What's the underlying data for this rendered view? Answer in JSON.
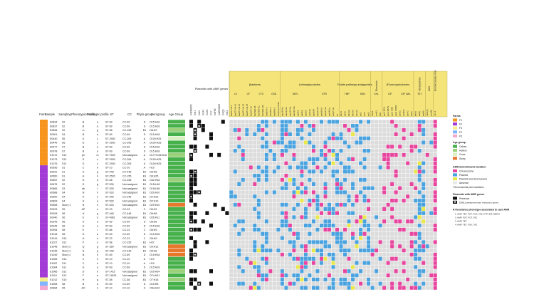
{
  "figure": {
    "column_headers": {
      "farm": "Farm",
      "sample": "Sample",
      "sampling": "Sampling",
      "phenotypic_profile": "Phenotypic Profile",
      "genotypic_profile": "Genotypic profile",
      "st": "ST",
      "cc": "CC",
      "phylogroup": "Phylo-group",
      "serogroup": "Serogroup",
      "age_group": "Age Group"
    },
    "plasmid_title": "Plasmids with AMR genes",
    "plasmid_columns": [
      "IncFIB/FIC",
      "IncI1",
      "IncN",
      "IncX1",
      "IncX4",
      "IncY",
      "IncHI2",
      "IncB/O/K/Z",
      "IncQ1",
      "IncI2"
    ],
    "gene_groups": [
      {
        "name": "βlactams",
        "subs": [
          "LX",
          "CF",
          "CTX",
          "OXA"
        ]
      },
      {
        "name": "Aminoglycosides",
        "subs": [
          "GEN",
          "STR"
        ]
      },
      {
        "name": "Folate pathway antagonists",
        "subs": [
          "TMP",
          "SMX"
        ]
      },
      {
        "name": "Phenicols",
        "subs": [
          "CHL"
        ]
      },
      {
        "name": "(F)uoroquinolones",
        "subs": [
          "CIP",
          "CIP, NAL"
        ]
      },
      {
        "name": "Tetracyclines",
        "subs": [
          "TET"
        ]
      },
      {
        "name": "MLS",
        "subs": []
      },
      {
        "name": "Antimicrobials other",
        "subs": []
      }
    ],
    "gene_columns": [
      "blaCTX-M-1",
      "blaCTX-M-14",
      "blaCTX-M-15",
      "blaCTX-M-32",
      "blaCTX-M-55",
      "blaSHV-12",
      "blaTEM-1B",
      "blaTEM-1C",
      "blaTEM-135",
      "blaOXA-1",
      "blaCMY-2",
      "blaDHA-1",
      "ampC-promoter",
      "aac(3)-IIa",
      "aac(3)-IId",
      "aac(3)-IVa",
      "aac(3)-VIa",
      "aadA1",
      "aadA2",
      "aadA5",
      "aadA12",
      "aadA24",
      "aph(3'')-Ib",
      "aph(6)-Id",
      "aph(3')-Ia",
      "aph(4)-Ia",
      "ant(2'')-Ia",
      "str",
      "dfrA1",
      "dfrA5",
      "dfrA12",
      "dfrA14",
      "dfrA17",
      "sul1",
      "sul2",
      "sul3",
      "catA1",
      "cmlA1",
      "floR",
      "gyrA S83L",
      "gyrA D87N",
      "parC S80I",
      "parE S458A",
      "qnrS1",
      "qnrB19",
      "qnrA1",
      "qepA",
      "tet(A)",
      "tet(B)",
      "tet(M)",
      "mph(A)",
      "erm(B)",
      "mcr-1"
    ],
    "rows": [
      {
        "sample": "E0834",
        "sampling": "S2",
        "phen": "B",
        "gen": "a",
        "st": "ST-69",
        "cc": "CC-69",
        "phylo": "D",
        "sero": "O15:H18",
        "farm": "F1",
        "age": "Calves"
      },
      {
        "sample": "E0837",
        "sampling": "S2",
        "phen": "B",
        "gen": "a",
        "st": "ST-69",
        "cc": "CC-69",
        "phylo": "D",
        "sero": "O15:H18",
        "farm": "F1",
        "age": "Calves"
      },
      {
        "sample": "E0838",
        "sampling": "S2",
        "phen": "m",
        "gen": "g",
        "st": "ST-58",
        "cc": "CC-155",
        "phylo": "B1",
        "sero": "O8:H9",
        "farm": "F1",
        "age": "Heifers"
      },
      {
        "sample": "E0901",
        "sampling": "S4",
        "phen": "B",
        "gen": "a",
        "st": "ST-69",
        "cc": "CC-69",
        "phylo": "D",
        "sero": "O15:H18",
        "farm": "F1",
        "age": "Calves"
      },
      {
        "sample": "E0440",
        "sampling": "S6",
        "phen": "G",
        "gen": "c",
        "st": "ST-2930",
        "cc": "CC-206",
        "phylo": "A",
        "sero": "O100:H25",
        "farm": "F1",
        "age": "Cows"
      },
      {
        "sample": "E0449",
        "sampling": "S6",
        "phen": "G",
        "gen": "c",
        "st": "ST-2930",
        "cc": "CC-206",
        "phylo": "A",
        "sero": "O100:H25",
        "farm": "F1",
        "age": "Calves"
      },
      {
        "sample": "E0977",
        "sampling": "S7",
        "phen": "B",
        "gen": "a",
        "st": "ST-69",
        "cc": "CC-69",
        "phylo": "D",
        "sero": "O15:H18",
        "farm": "F1",
        "age": "Calves"
      },
      {
        "sample": "E0978",
        "sampling": "S7",
        "phen": "B",
        "gen": "a",
        "st": "ST-69",
        "cc": "CC-69",
        "phylo": "D",
        "sero": "O15:H18",
        "farm": "F1",
        "age": "Calves"
      },
      {
        "sample": "E1072",
        "sampling": "S12",
        "phen": "pC",
        "gen": "m",
        "st": "ST-7539",
        "cc": "Not assigned",
        "phylo": "A",
        "sero": "O177/O46:H18",
        "farm": "F1",
        "age": "Heifers"
      },
      {
        "sample": "E1073",
        "sampling": "S12",
        "phen": "G",
        "gen": "c",
        "st": "ST-2930",
        "cc": "CC-206",
        "phylo": "A",
        "sero": "O100:H25",
        "farm": "F1",
        "age": "Calves"
      },
      {
        "sample": "E1075",
        "sampling": "S12",
        "phen": "G",
        "gen": "c",
        "st": "ST-2930",
        "cc": "CC-206",
        "phylo": "A",
        "sero": "O100:H25",
        "farm": "F1",
        "age": "Calves"
      },
      {
        "sample": "E0636",
        "sampling": "S1",
        "phen": "C",
        "gen": "b",
        "st": "ST-10",
        "cc": "CC-10",
        "phylo": "A",
        "sero": "H19",
        "farm": "F2",
        "age": "Calves"
      },
      {
        "sample": "E0642",
        "sampling": "S1",
        "phen": "H",
        "gen": "g",
        "st": "ST-448",
        "cc": "CC-448",
        "phylo": "B1",
        "sero": "O8:H8",
        "farm": "F2",
        "age": "Calves"
      },
      {
        "sample": "E0650",
        "sampling": "S1",
        "phen": "H",
        "gen": "h",
        "st": "ST-2520",
        "cc": "CC-155",
        "phylo": "B1",
        "sero": "O8:H25",
        "farm": "F2",
        "age": "Calves"
      },
      {
        "sample": "E0657",
        "sampling": "S2",
        "phen": "G",
        "gen": "d",
        "st": "ST-58",
        "cc": "CC-155",
        "phylo": "B1",
        "sero": "O32:H18",
        "farm": "F2",
        "age": "Heifers"
      },
      {
        "sample": "E0675",
        "sampling": "S2",
        "phen": "G",
        "gen": "g",
        "st": "ST-539",
        "cc": "Not assigned",
        "phylo": "B1",
        "sero": "O154:H8",
        "farm": "F2",
        "age": "Calves"
      },
      {
        "sample": "E0665",
        "sampling": "S3",
        "phen": "ab",
        "gen": "f",
        "st": "ST-539",
        "cc": "Not assigned",
        "phylo": "B1",
        "sero": "O154:H8",
        "farm": "F2",
        "age": "Calves"
      },
      {
        "sample": "E0688",
        "sampling": "S4",
        "phen": "N",
        "gen": "h",
        "st": "ST-533",
        "cc": "Not assigned",
        "phylo": "B1",
        "sero": "O29:H10",
        "farm": "F2",
        "age": "Calves"
      },
      {
        "sample": "E0690",
        "sampling": "S4",
        "phen": "H",
        "gen": "h",
        "st": "ST-345",
        "cc": "CC-345",
        "phylo": "B1",
        "sero": "O2:H29",
        "farm": "F2",
        "age": "Calves"
      },
      {
        "sample": "E0893",
        "sampling": "S4",
        "phen": "H",
        "gen": "a",
        "st": "ST-533",
        "cc": "Not assigned",
        "phylo": "B1",
        "sero": "O2:H10",
        "farm": "F2",
        "age": "Calves"
      },
      {
        "sample": "E0898",
        "sampling": "Slurry 1",
        "phen": "N",
        "gen": "h",
        "st": "ST-533",
        "cc": "Not assigned",
        "phylo": "B1",
        "sero": "O29:H10",
        "farm": "F2",
        "age": "Slurry"
      },
      {
        "sample": "E0923",
        "sampling": "S5",
        "phen": "AP",
        "gen": "e",
        "st": "ST-23",
        "cc": "CC-23",
        "phylo": "C",
        "sero": "O8:H9",
        "farm": "F2",
        "age": "Calves"
      },
      {
        "sample": "E0928",
        "sampling": "S6",
        "phen": "H",
        "gen": "g",
        "st": "ST-448",
        "cc": "CC-448",
        "phylo": "B1",
        "sero": "O8:H8",
        "farm": "F2",
        "age": "Calves"
      },
      {
        "sample": "E0940",
        "sampling": "S6",
        "phen": "E",
        "gen": "e",
        "st": "ST-4981",
        "cc": "Not assigned",
        "phylo": "B1",
        "sero": "O26:H11",
        "farm": "F2",
        "age": "Calves"
      },
      {
        "sample": "E0943",
        "sampling": "S6",
        "phen": "H",
        "gen": "a",
        "st": "ST-69",
        "cc": "CC-69",
        "phylo": "D",
        "sero": "O8:H8",
        "farm": "F2",
        "age": "Calves"
      },
      {
        "sample": "E0945",
        "sampling": "S6",
        "phen": "G",
        "gen": "a",
        "st": "ST-69",
        "cc": "CC-69",
        "phylo": "D",
        "sero": "O15:H18",
        "farm": "F2",
        "age": "Calves"
      },
      {
        "sample": "E0994",
        "sampling": "S8",
        "phen": "E",
        "gen": "I",
        "st": "ST-88",
        "cc": "CC-23",
        "phylo": "C",
        "sero": "O8:H9",
        "farm": "F2",
        "age": "Calves"
      },
      {
        "sample": "E1018",
        "sampling": "S8",
        "phen": "G",
        "gen": "a",
        "st": "ST-69",
        "cc": "CC-69",
        "phylo": "D",
        "sero": "O15:H18",
        "farm": "F2",
        "age": "Calves"
      },
      {
        "sample": "E1019",
        "sampling": "S10",
        "phen": "H",
        "gen": "b",
        "st": "ST-23",
        "cc": "CC-23",
        "phylo": "C",
        "sero": "O8:H9",
        "farm": "F2",
        "age": "Calves"
      },
      {
        "sample": "E1027",
        "sampling": "S12",
        "phen": "P",
        "gen": "n",
        "st": "ST-58",
        "cc": "CC-155",
        "phylo": "B1",
        "sero": "H37",
        "farm": "F2",
        "age": "Calves"
      },
      {
        "sample": "E1048",
        "sampling": "Slurry 2",
        "phen": "Q",
        "gen": "g",
        "st": "ST-359",
        "cc": "Not assigned",
        "phylo": "B1",
        "sero": "O9:H12",
        "farm": "F2",
        "age": "Slurry"
      },
      {
        "sample": "E1046",
        "sampling": "Slurry 2",
        "phen": "N",
        "gen": "g",
        "st": "ST-448",
        "cc": "CC-448",
        "phylo": "B1",
        "sero": "O8:H8",
        "farm": "F2",
        "age": "Slurry"
      },
      {
        "sample": "E1049",
        "sampling": "Slurry 2",
        "phen": "N",
        "gen": "e",
        "st": "ST-69",
        "cc": "CC-69",
        "phylo": "D",
        "sero": "O15:H18",
        "farm": "F2",
        "age": "Slurry"
      },
      {
        "sample": "E1055",
        "sampling": "S13",
        "phen": "C",
        "gen": "b",
        "st": "ST-10",
        "cc": "CC-10",
        "phylo": "A",
        "sero": "H19",
        "farm": "F2",
        "age": "Calves"
      },
      {
        "sample": "E1057",
        "sampling": "S11",
        "phen": "C",
        "gen": "b",
        "st": "ST-10",
        "cc": "CC-10",
        "phylo": "A",
        "sero": "H19",
        "farm": "F2",
        "age": "Calves"
      },
      {
        "sample": "E1064",
        "sampling": "S11",
        "phen": "G",
        "gen": "a",
        "st": "ST-69",
        "cc": "CC-69",
        "phylo": "D",
        "sero": "O15:H18",
        "farm": "F2",
        "age": "Calves"
      },
      {
        "sample": "E1066",
        "sampling": "S12",
        "phen": "D",
        "gen": "b",
        "st": "ST-1415",
        "cc": "Not assigned",
        "phylo": "B1",
        "sero": "O29:H34",
        "farm": "F2",
        "age": "Heifers"
      },
      {
        "sample": "E1110",
        "sampling": "S12",
        "phen": "F",
        "gen": "e",
        "st": "ST-11629",
        "cc": "Not assigned",
        "phylo": "B1",
        "sero": "O74:H21",
        "farm": "F2",
        "age": "Calves"
      },
      {
        "sample": "E1012",
        "sampling": "S10",
        "phen": "H",
        "gen": "g",
        "st": "ST-58",
        "cc": "CC-58",
        "phylo": "B1",
        "sero": "O7:H18",
        "farm": "F3",
        "age": "Heifers"
      },
      {
        "sample": "E1008",
        "sampling": "S8",
        "phen": "B",
        "gen": "a",
        "st": "ST-69",
        "cc": "CC-69",
        "phylo": "D",
        "sero": "O15:H8",
        "farm": "F4",
        "age": "Calves"
      },
      {
        "sample": "E0684",
        "sampling": "S5",
        "phen": "AO",
        "gen": "k",
        "st": "ST-10",
        "cc": "CC-10",
        "phylo": "A",
        "sero": "O9a:H10",
        "farm": "F5",
        "age": "Calves"
      }
    ],
    "legend": {
      "farms_title": "Farms",
      "farms": [
        {
          "label": "F1",
          "color": "#f7941d"
        },
        {
          "label": "F2",
          "color": "#a23bd6"
        },
        {
          "label": "F3",
          "color": "#f6f08a"
        },
        {
          "label": "F4",
          "color": "#80b6ff"
        },
        {
          "label": "F5",
          "color": "#f4a8cf"
        }
      ],
      "age_title": "Age group",
      "ages": [
        {
          "label": "Calves",
          "color": "#46b04a"
        },
        {
          "label": "Heifers",
          "color": "#9bd17a"
        },
        {
          "label": "Cows",
          "color": "#d9f0c3"
        },
        {
          "label": "Slurry",
          "color": "#e8782b"
        }
      ],
      "location_title": "AMR determinants location",
      "locations": [
        {
          "label": "Chromosome",
          "color": "#e8459e"
        },
        {
          "label": "Plasmid",
          "color": "#4aa3df"
        },
        {
          "label": "Plasmid and chromosome",
          "color": "#e9e84b"
        },
        {
          "label": "Absence",
          "color": "#e8e8e8"
        }
      ],
      "chrom_note": "*Chromosomal point mutations",
      "plasmid_title": "Plasmids with AMR genes",
      "plasmid_items": [
        "Presence",
        "ESBL/carbapenemase resistance genes"
      ],
      "pheno_title": "R Resistance phenotype associated to each AMR",
      "pheno_items": [
        "1: AMP, TET, FOT, FOX, TAZ, KTP, SIR, MERO",
        "2: AMP, FOT, FOT, TAZ",
        "3: AMP, TET",
        "4: AMP, TET, FOX, TAZ"
      ]
    },
    "colors": {
      "header_bg": "#f5e47a",
      "absence": "#dcdcdc",
      "plasmid": "#4aa3df",
      "chromosome": "#e8459e",
      "both": "#e9e84b",
      "presence": "#111111"
    }
  }
}
